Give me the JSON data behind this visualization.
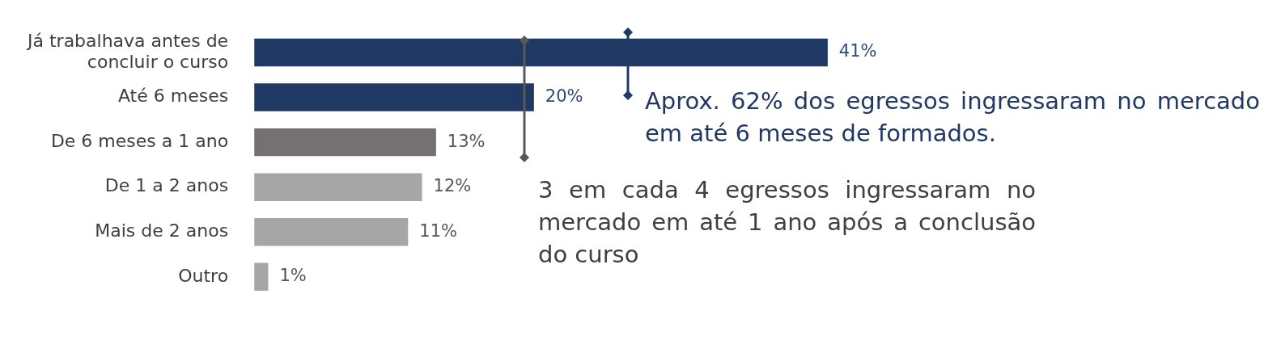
{
  "chart_data": {
    "type": "bar",
    "orientation": "horizontal",
    "categories": [
      "Já trabalhava antes de concluir o curso",
      "Até 6 meses",
      "De 6 meses a 1 ano",
      "De 1 a 2 anos",
      "Mais de 2 anos",
      "Outro"
    ],
    "values": [
      41,
      20,
      13,
      12,
      11,
      1
    ],
    "colors": [
      "#203864",
      "#203864",
      "#767171",
      "#a6a6a6",
      "#a6a6a6",
      "#a6a6a6"
    ],
    "value_labels": [
      "41%",
      "20%",
      "13%",
      "12%",
      "11%",
      "1%"
    ],
    "annotations": [
      "Aprox. 62% dos egressos ingressaram no mercado em até 6 meses de formados.",
      "3 em cada 4 egressos ingressaram no mercado em até 1 ano após a conclusão do curso"
    ]
  }
}
